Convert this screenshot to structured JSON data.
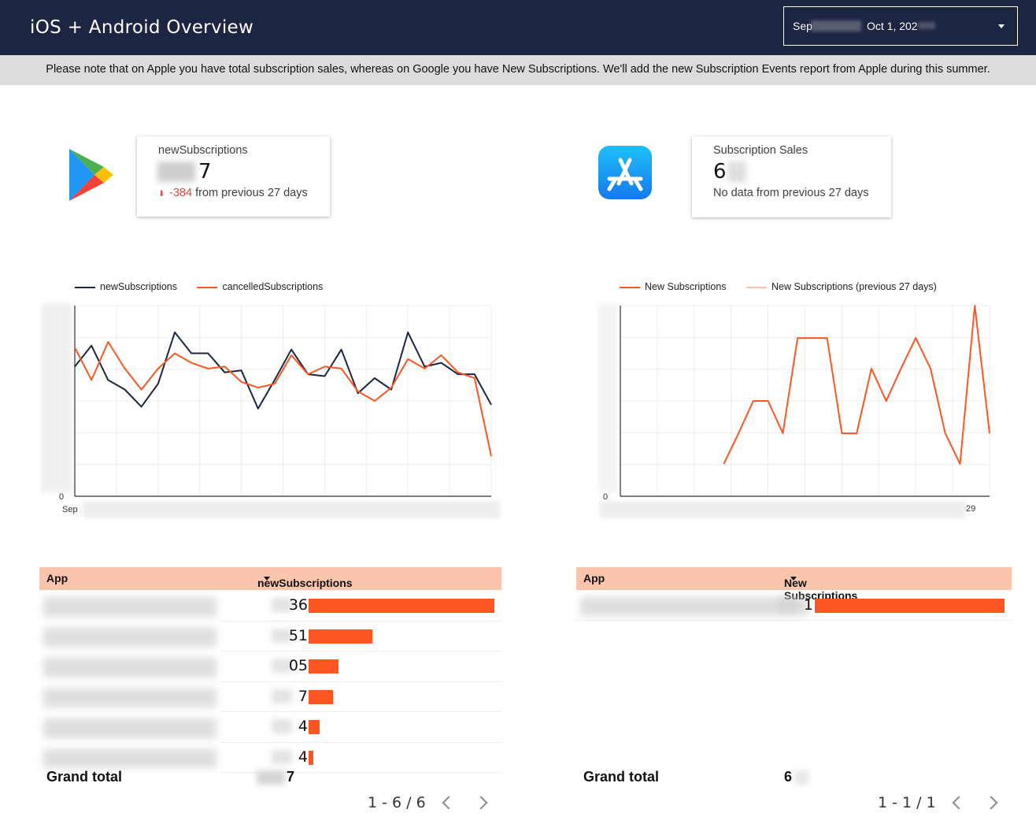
{
  "header": {
    "title": "iOS + Android Overview",
    "date_start": "Sep",
    "date_end": "Oct 1, 202"
  },
  "notice": "Please note that on Apple you have total subscription sales, whereas on Google you have New Subscriptions. We'll add the new Subscription Events report from Apple during this summer.",
  "android": {
    "scorecard": {
      "label": "newSubscriptions",
      "value_visible": "7",
      "delta_value": "-384",
      "delta_text": "from previous 27 days"
    },
    "chart": {
      "legend": [
        "newSubscriptions",
        "cancelledSubscriptions"
      ],
      "y_zero": "0",
      "x_first": "Sep"
    },
    "table": {
      "col_app": "App",
      "col_metric": "newSubscriptions",
      "rows": [
        {
          "value_visible": "36",
          "bar_fraction": 1.0
        },
        {
          "value_visible": "51",
          "bar_fraction": 0.345
        },
        {
          "value_visible": "05",
          "bar_fraction": 0.159
        },
        {
          "value_visible": "7",
          "bar_fraction": 0.132
        },
        {
          "value_visible": "4",
          "bar_fraction": 0.058
        },
        {
          "value_visible": "4",
          "bar_fraction": 0.025
        }
      ],
      "grand_total_label": "Grand total",
      "grand_total_visible": "7",
      "pager": "1 - 6 / 6"
    }
  },
  "ios": {
    "scorecard": {
      "label": "Subscription Sales",
      "value_visible": "6",
      "delta_text": "No data from previous 27 days"
    },
    "chart": {
      "legend": [
        "New Subscriptions",
        "New Subscriptions (previous 27 days)"
      ],
      "y_zero": "0",
      "x_last": "29"
    },
    "table": {
      "col_app": "App",
      "col_metric": "New Subscriptions",
      "rows": [
        {
          "value_visible": "1",
          "bar_fraction": 1.0
        }
      ],
      "grand_total_label": "Grand total",
      "grand_total_visible": "6",
      "pager": "1 - 1 / 1"
    }
  },
  "colors": {
    "header_bg": "#1c2541",
    "series_dark": "#1c2541",
    "series_orange": "#fd5623",
    "series_light_orange": "#ffc2a8",
    "table_header": "#fbc4ad"
  },
  "chart_data": [
    {
      "type": "line",
      "series": [
        {
          "name": "newSubscriptions",
          "values": [
            0.68,
            0.79,
            0.61,
            0.56,
            0.47,
            0.59,
            0.86,
            0.75,
            0.75,
            0.65,
            0.66,
            0.46,
            0.61,
            0.77,
            0.64,
            0.63,
            0.77,
            0.54,
            0.62,
            0.56,
            0.86,
            0.68,
            0.7,
            0.64,
            0.64,
            0.48
          ]
        },
        {
          "name": "cancelledSubscriptions",
          "values": [
            0.78,
            0.61,
            0.81,
            0.67,
            0.56,
            0.67,
            0.75,
            0.7,
            0.67,
            0.68,
            0.6,
            0.57,
            0.59,
            0.74,
            0.64,
            0.68,
            0.67,
            0.55,
            0.5,
            0.57,
            0.72,
            0.67,
            0.74,
            0.65,
            0.62,
            0.21
          ]
        }
      ],
      "x_first_label": "Sep",
      "y_min": 0,
      "grid": true,
      "legend_position": "top-left"
    },
    {
      "type": "line",
      "series": [
        {
          "name": "New Subscriptions",
          "values": [
            null,
            null,
            null,
            null,
            null,
            null,
            null,
            0.17,
            0.33,
            0.5,
            0.5,
            0.33,
            0.83,
            0.83,
            0.83,
            0.33,
            0.33,
            0.67,
            0.5,
            0.67,
            0.83,
            0.67,
            0.33,
            0.17,
            1.0,
            0.33
          ]
        },
        {
          "name": "New Subscriptions (previous 27 days)",
          "values": []
        }
      ],
      "x_last_label": "29",
      "y_min": 0,
      "grid": true,
      "legend_position": "top"
    }
  ]
}
